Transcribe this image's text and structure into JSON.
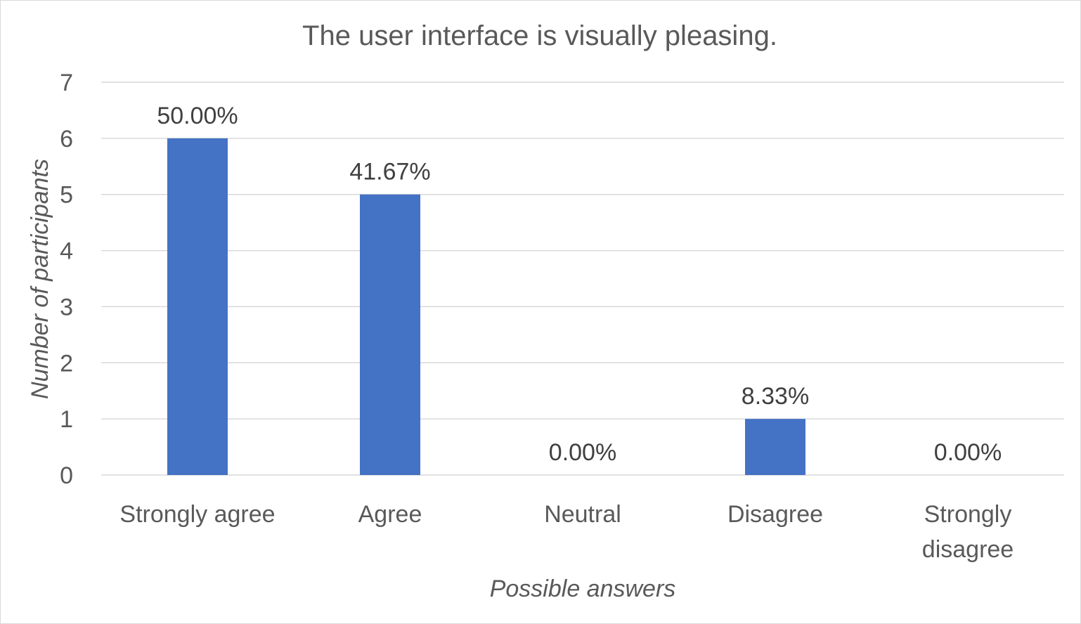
{
  "chart_data": {
    "type": "bar",
    "title": "The user interface is visually pleasing.",
    "xlabel": "Possible answers",
    "ylabel": "Number of participants",
    "categories": [
      [
        "Strongly agree"
      ],
      [
        "Agree"
      ],
      [
        "Neutral"
      ],
      [
        "Disagree"
      ],
      [
        "Strongly",
        "disagree"
      ]
    ],
    "values": [
      6,
      5,
      0,
      1,
      0
    ],
    "data_labels": [
      "50.00%",
      "41.67%",
      "0.00%",
      "8.33%",
      "0.00%"
    ],
    "ylim": [
      0,
      7
    ],
    "yticks": [
      "0",
      "1",
      "2",
      "3",
      "4",
      "5",
      "6",
      "7"
    ],
    "grid": true,
    "legend": "none",
    "bar_color": "#4472c4"
  }
}
